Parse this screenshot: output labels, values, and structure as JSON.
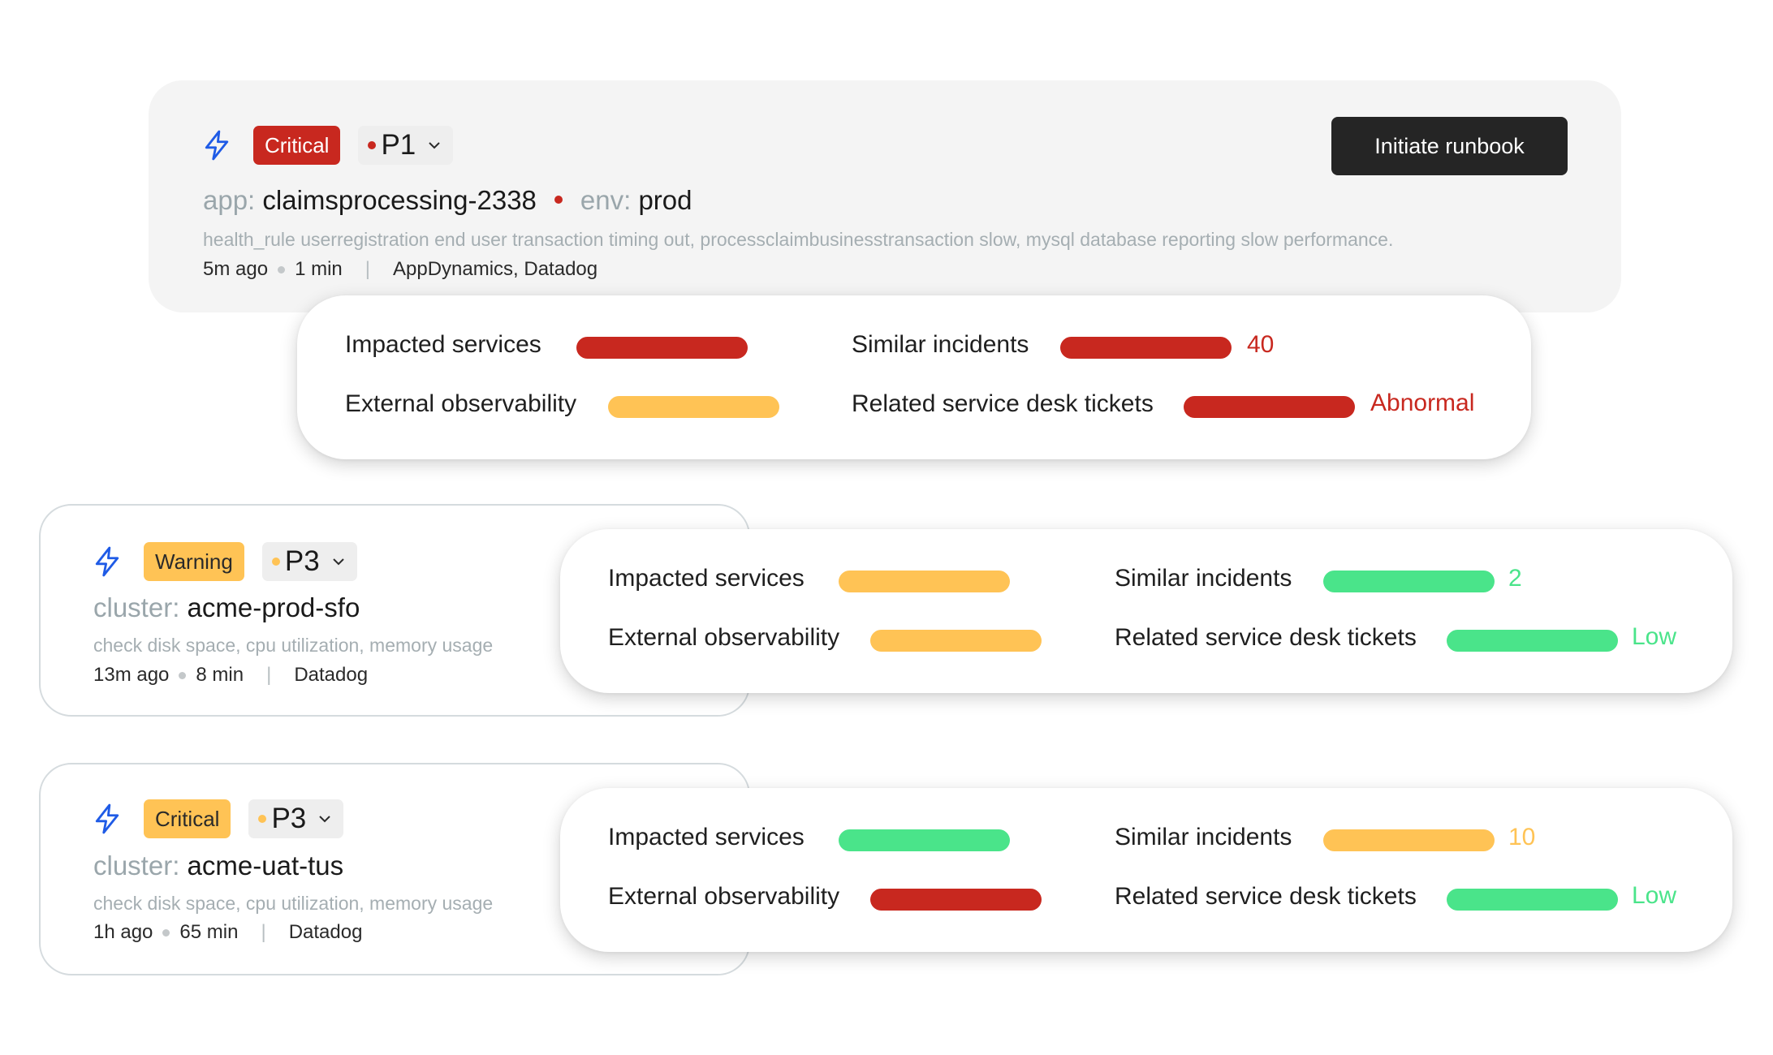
{
  "colors": {
    "critical_red": "#c8281f",
    "warning_yellow": "#ffc355",
    "ok_green": "#4ae48a",
    "bolt_blue": "#1f5be6"
  },
  "incidents": [
    {
      "icon": "bolt-icon",
      "severity": "Critical",
      "priority": "P1",
      "title_key_1": "app:",
      "title_val_1": "claimsprocessing-2338",
      "title_key_2": "env:",
      "title_val_2": "prod",
      "description": "health_rule userregistration end user transaction timing out, processclaimbusinesstransaction slow, mysql database reporting slow performance.",
      "time_ago": "5m ago",
      "duration": "1 min",
      "separator": "|",
      "sources": "AppDynamics, Datadog",
      "action_label": "Initiate runbook",
      "metrics": {
        "impacted_services": "Impacted services",
        "external_observability": "External observability",
        "similar_incidents": "Similar incidents",
        "similar_incidents_value": "40",
        "related_tickets": "Related service desk tickets",
        "related_tickets_value": "Abnormal"
      }
    },
    {
      "icon": "bolt-icon",
      "severity": "Warning",
      "priority": "P3",
      "title_key_1": "cluster:",
      "title_val_1": "acme-prod-sfo",
      "description": "check disk space, cpu utilization, memory usage",
      "time_ago": "13m ago",
      "duration": "8 min",
      "separator": "|",
      "sources": "Datadog",
      "metrics": {
        "impacted_services": "Impacted services",
        "external_observability": "External observability",
        "similar_incidents": "Similar incidents",
        "similar_incidents_value": "2",
        "related_tickets": "Related service desk tickets",
        "related_tickets_value": "Low"
      }
    },
    {
      "icon": "bolt-icon",
      "severity": "Critical",
      "priority": "P3",
      "title_key_1": "cluster:",
      "title_val_1": "acme-uat-tus",
      "description": "check disk space, cpu utilization, memory usage",
      "time_ago": "1h ago",
      "duration": "65 min",
      "separator": "|",
      "sources": "Datadog",
      "metrics": {
        "impacted_services": "Impacted services",
        "external_observability": "External observability",
        "similar_incidents": "Similar incidents",
        "similar_incidents_value": "10",
        "related_tickets": "Related service desk tickets",
        "related_tickets_value": "Low"
      }
    }
  ]
}
